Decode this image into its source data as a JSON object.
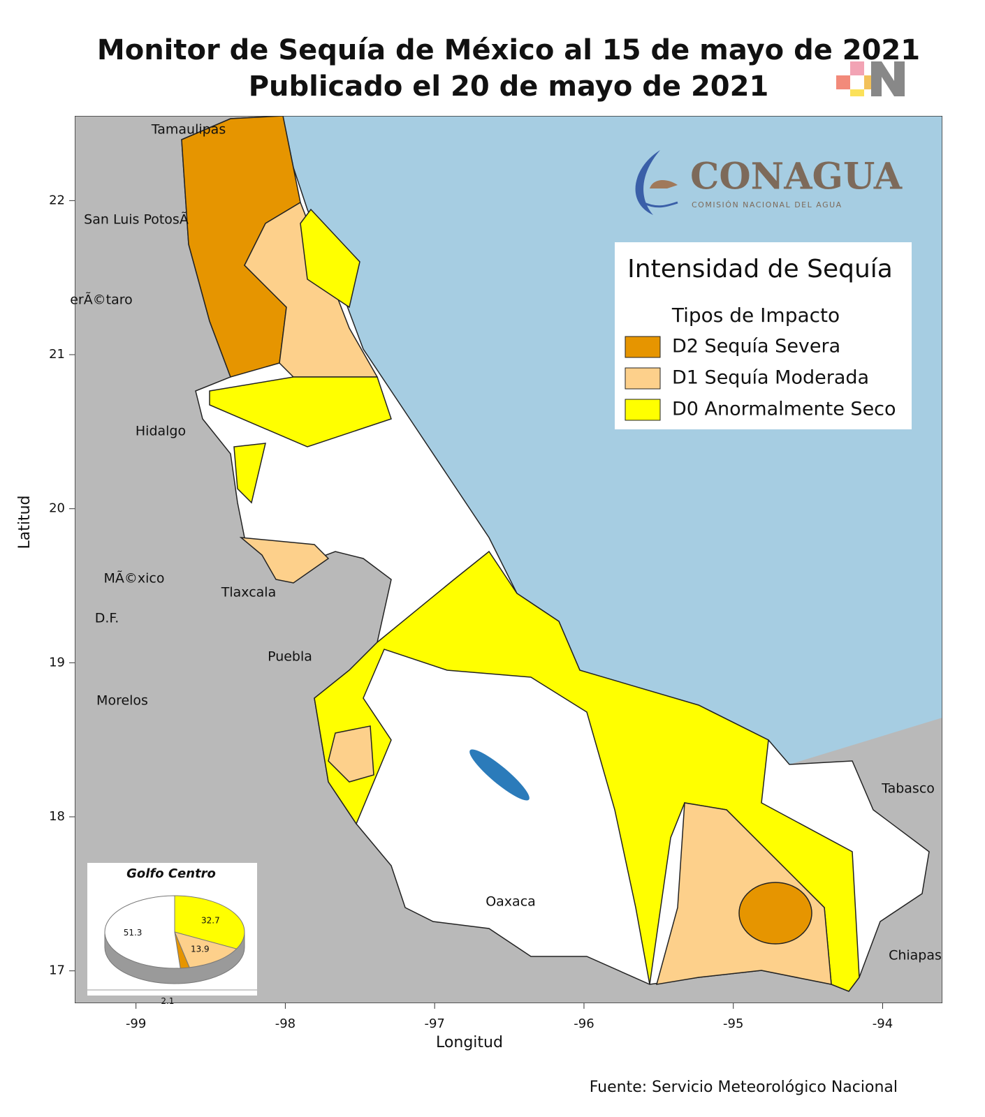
{
  "header": {
    "title": "Monitor de Sequía de México al 15 de mayo de 2021",
    "subtitle": "Publicado el 20 de mayo de 2021"
  },
  "logo": {
    "name": "CONAGUA",
    "tagline": "COMISIÓN NACIONAL DEL AGUA"
  },
  "map": {
    "xlabel": "Longitud",
    "ylabel": "Latitud",
    "xlim": [
      -99.41,
      -93.6
    ],
    "ylim": [
      16.79,
      22.55
    ],
    "xticks": [
      -99,
      -98,
      -97,
      -96,
      -95,
      -94
    ],
    "yticks": [
      17,
      18,
      19,
      20,
      21,
      22
    ],
    "places": [
      "Tamaulipas",
      "San Luis PotosÃ",
      "erÃ©taro",
      "Hidalgo",
      "MÃ©xico",
      "Tlaxcala",
      "D.F.",
      "Puebla",
      "Morelos",
      "Oaxaca",
      "Tabasco",
      "Chiapas"
    ]
  },
  "legend": {
    "title": "Intensidad de Sequía",
    "subtitle": "Tipos de Impacto",
    "items": [
      {
        "label": "D2 Sequía Severa",
        "color": "#e69500"
      },
      {
        "label": "D1 Sequía Moderada",
        "color": "#fdd08b"
      },
      {
        "label": "D0 Anormalmente Seco",
        "color": "#ffff00"
      }
    ]
  },
  "inset": {
    "title": "Golfo Centro",
    "slices": [
      {
        "value": 32.7,
        "color": "#ffff00"
      },
      {
        "value": 13.9,
        "color": "#fdd08b"
      },
      {
        "value": 2.1,
        "color": "#e69500"
      },
      {
        "value": 51.3,
        "color": "#ffffff"
      }
    ]
  },
  "source": "Fuente: Servicio Meteorológico Nacional"
}
